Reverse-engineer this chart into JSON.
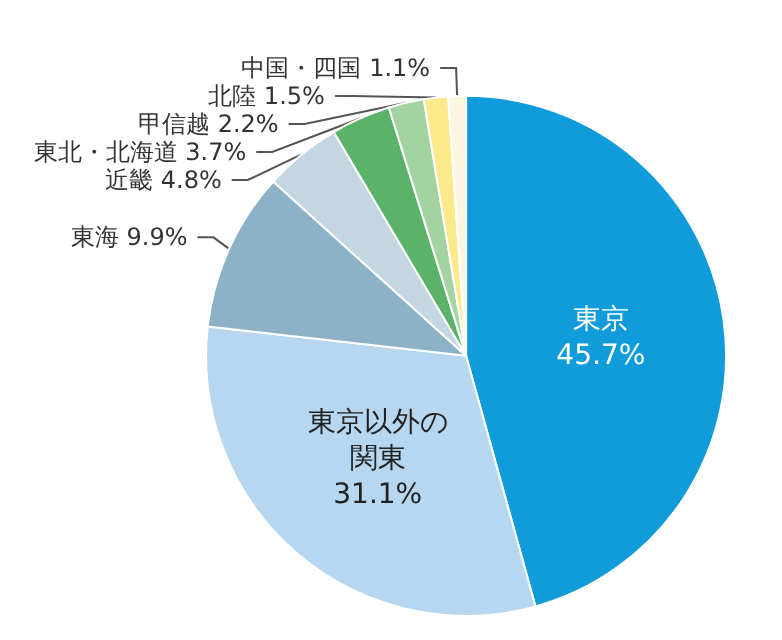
{
  "chart_data": {
    "type": "pie",
    "categories": [
      "東京",
      "東京以外の関東",
      "東海",
      "近畿",
      "東北・北海道",
      "甲信越",
      "北陸",
      "中国・四国"
    ],
    "values": [
      45.7,
      31.1,
      9.9,
      4.8,
      3.7,
      2.2,
      1.5,
      1.1
    ],
    "value_labels": [
      "45.7%",
      "31.1%",
      "9.9%",
      "4.8%",
      "3.7%",
      "2.2%",
      "1.5%",
      "1.1%"
    ],
    "colors": [
      "#109cdb",
      "#b7d7f0",
      "#8db2c7",
      "#c5d6e3",
      "#5bb36a",
      "#a3d3a0",
      "#fbe98a",
      "#fcf6e0"
    ],
    "legend": false
  }
}
